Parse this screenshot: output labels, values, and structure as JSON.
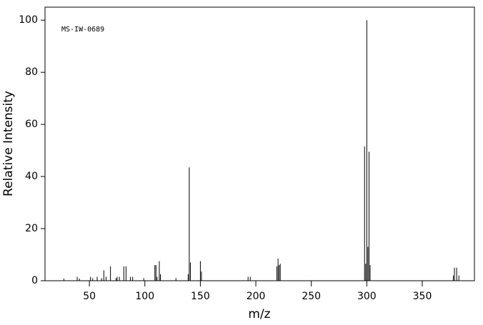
{
  "chart_data": {
    "type": "stem",
    "annotation": "MS-IW-0689",
    "xlabel": "m/z",
    "ylabel": "Relative Intensity",
    "x": [
      27,
      39,
      41,
      51,
      53,
      57,
      61,
      63,
      65,
      69,
      74,
      75,
      77,
      81,
      83,
      87,
      89,
      99,
      109,
      110,
      111,
      113,
      114,
      128,
      139,
      140,
      141,
      150,
      151,
      193,
      195,
      219,
      220,
      221,
      222,
      298,
      299,
      300,
      301,
      302,
      303,
      378,
      379,
      381,
      383
    ],
    "values": [
      0.8,
      1.5,
      0.8,
      1.5,
      1,
      1.5,
      1,
      4,
      1.5,
      5.5,
      1,
      1.5,
      1.5,
      5.5,
      5.5,
      1.5,
      1.5,
      1,
      6,
      6,
      1.5,
      7.5,
      2.5,
      1,
      2.5,
      43.5,
      7,
      7.5,
      3.5,
      1.5,
      1.5,
      5.5,
      8.5,
      6,
      6.5,
      51.5,
      6.5,
      100,
      13,
      49.5,
      6,
      2,
      5,
      5,
      2
    ],
    "color": "#000000",
    "xlim": [
      10,
      397
    ],
    "xticks": [
      50,
      100,
      150,
      200,
      250,
      300,
      350
    ],
    "ylim": [
      0,
      105
    ],
    "yticks": [
      0,
      20,
      40,
      60,
      80,
      100
    ]
  }
}
